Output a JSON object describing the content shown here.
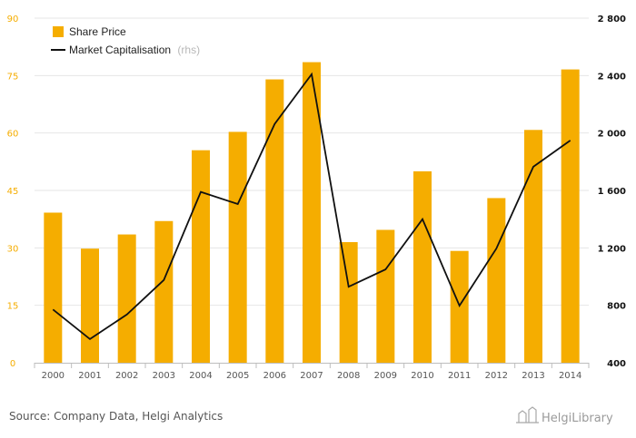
{
  "chart_data": {
    "type": "bar",
    "title": "",
    "categories": [
      "2000",
      "2001",
      "2002",
      "2003",
      "2004",
      "2005",
      "2006",
      "2007",
      "2008",
      "2009",
      "2010",
      "2011",
      "2012",
      "2013",
      "2014"
    ],
    "series": [
      {
        "name": "Share Price",
        "type": "bar",
        "axis": "left",
        "color": "#f5ad00",
        "values": [
          39.2,
          29.8,
          33.5,
          37.0,
          55.5,
          60.3,
          74.0,
          78.5,
          31.5,
          34.7,
          50.0,
          29.2,
          43.0,
          60.8,
          76.6
        ]
      },
      {
        "name": "Market Capitalisation",
        "suffix": "(rhs)",
        "type": "line",
        "axis": "right",
        "color": "#111111",
        "values": [
          771,
          565,
          736,
          976,
          1590,
          1505,
          2063,
          2410,
          929,
          1050,
          1400,
          797,
          1195,
          1765,
          1948
        ]
      }
    ],
    "y_left": {
      "min": 0,
      "max": 90,
      "ticks": [
        "0",
        "15",
        "30",
        "45",
        "60",
        "75",
        "90"
      ],
      "values": [
        0,
        15,
        30,
        45,
        60,
        75,
        90
      ],
      "color": "#f5ad00"
    },
    "y_right": {
      "min": 400,
      "max": 2800,
      "ticks": [
        "400",
        "800",
        "1 200",
        "1 600",
        "2 000",
        "2 400",
        "2 800"
      ],
      "values": [
        400,
        800,
        1200,
        1600,
        2000,
        2400,
        2800
      ],
      "color": "#111111"
    },
    "grid": true,
    "legend_position": "top-left"
  },
  "footer": {
    "source": "Source: Company Data, Helgi Analytics",
    "logo": "HelgiLibrary"
  }
}
